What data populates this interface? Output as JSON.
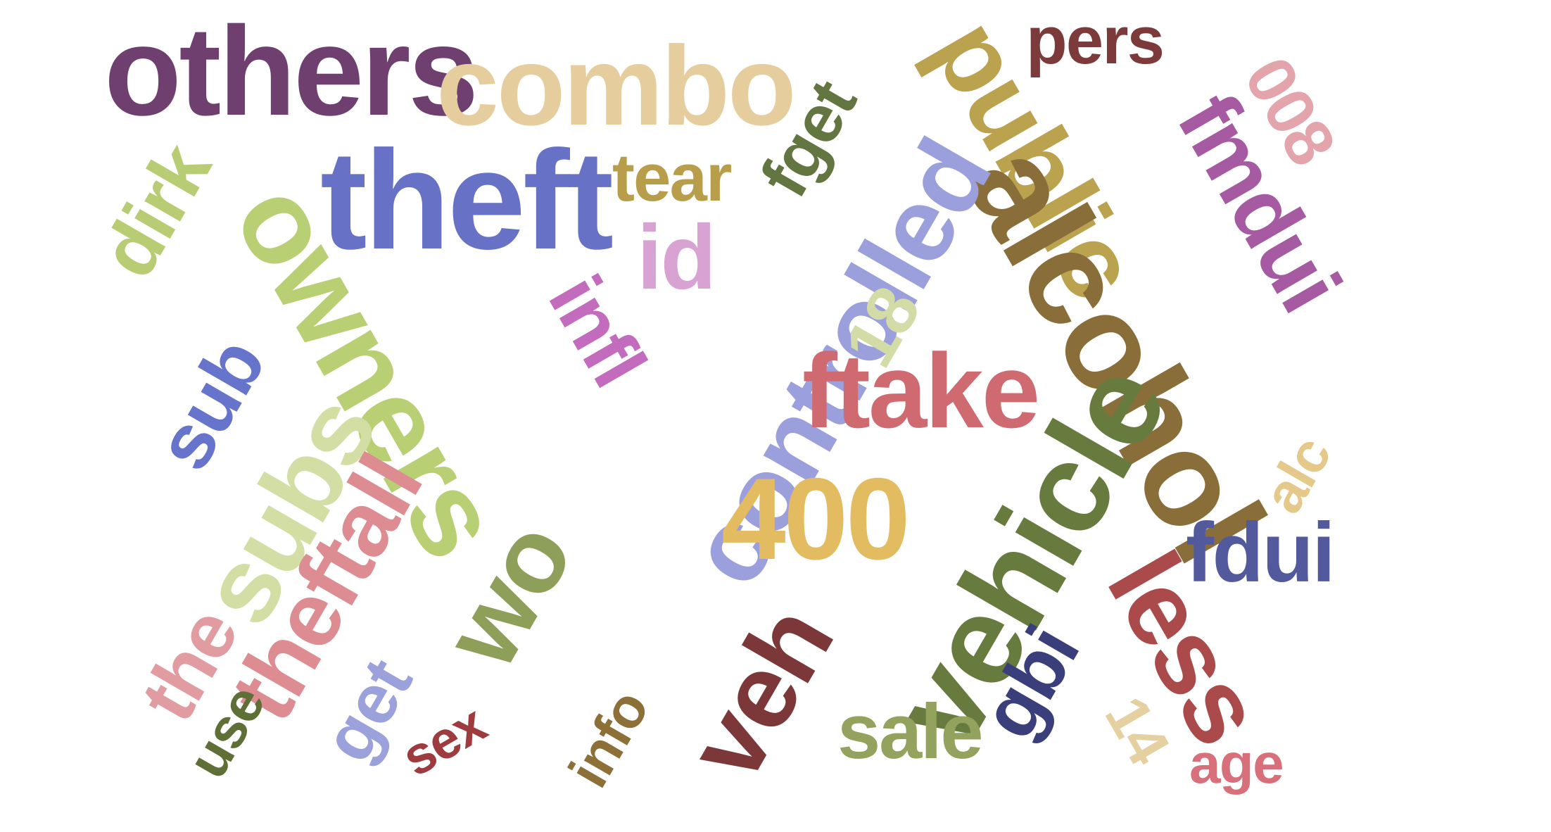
{
  "words": [
    {
      "key": "others",
      "text": "others",
      "color": "#6f3f70"
    },
    {
      "key": "combo",
      "text": "combo",
      "color": "#e6cd9e"
    },
    {
      "key": "pers",
      "text": "pers",
      "color": "#7d3a3a"
    },
    {
      "key": "w008",
      "text": "008",
      "color": "#e3a4ab"
    },
    {
      "key": "public",
      "text": "public",
      "color": "#baa24f"
    },
    {
      "key": "fget",
      "text": "fget",
      "color": "#637641"
    },
    {
      "key": "dirk",
      "text": "dirk",
      "color": "#b8cd73"
    },
    {
      "key": "theft",
      "text": "theft",
      "color": "#6771c6"
    },
    {
      "key": "tear",
      "text": "tear",
      "color": "#b89d4b"
    },
    {
      "key": "id",
      "text": "id",
      "color": "#d8a3d2"
    },
    {
      "key": "fmdui",
      "text": "fmdui",
      "color": "#a65aa1"
    },
    {
      "key": "owners",
      "text": "owners",
      "color": "#b8cf73"
    },
    {
      "key": "alcohol",
      "text": "alcohol",
      "color": "#8a6e39"
    },
    {
      "key": "controlled",
      "text": "controlled",
      "color": "#9ba0dd"
    },
    {
      "key": "infl",
      "text": "infl",
      "color": "#c36bbd"
    },
    {
      "key": "w18",
      "text": "18",
      "color": "#d3dca7"
    },
    {
      "key": "sub",
      "text": "sub",
      "color": "#6674cc"
    },
    {
      "key": "subs",
      "text": "subs",
      "color": "#d2dea4"
    },
    {
      "key": "ftake",
      "text": "ftake",
      "color": "#cf6a71"
    },
    {
      "key": "w400",
      "text": "400",
      "color": "#e3bc61"
    },
    {
      "key": "vehicle",
      "text": "vehicle",
      "color": "#687b3f"
    },
    {
      "key": "alc",
      "text": "alc",
      "color": "#e5c98a"
    },
    {
      "key": "theftall",
      "text": "theftall",
      "color": "#dd8d91"
    },
    {
      "key": "wo",
      "text": "wo",
      "color": "#8e9f5a"
    },
    {
      "key": "fdui",
      "text": "fdui",
      "color": "#525a9d"
    },
    {
      "key": "less",
      "text": "less",
      "color": "#ab4a4a"
    },
    {
      "key": "the",
      "text": "the",
      "color": "#e09ca0"
    },
    {
      "key": "get",
      "text": "get",
      "color": "#9ba1db"
    },
    {
      "key": "use",
      "text": "use",
      "color": "#5e7036"
    },
    {
      "key": "sex",
      "text": "sex",
      "color": "#9e3b3f"
    },
    {
      "key": "veh",
      "text": "veh",
      "color": "#7c3838"
    },
    {
      "key": "info",
      "text": "info",
      "color": "#8c7038"
    },
    {
      "key": "gbi",
      "text": "gbi",
      "color": "#3a3e7a"
    },
    {
      "key": "w14",
      "text": "14",
      "color": "#e5d0a1"
    },
    {
      "key": "sale",
      "text": "sale",
      "color": "#93a25d"
    },
    {
      "key": "age",
      "text": "age",
      "color": "#d7707a"
    }
  ]
}
